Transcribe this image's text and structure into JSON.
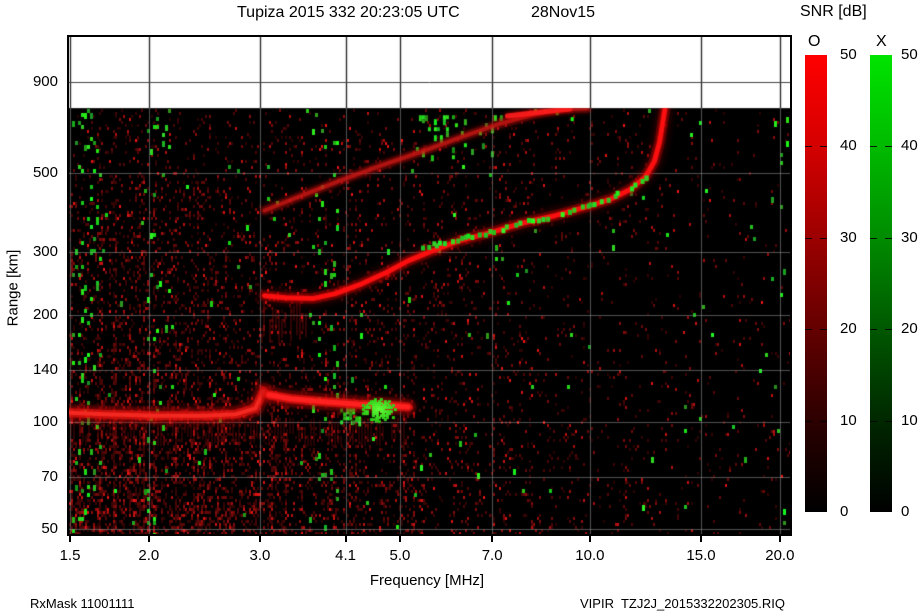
{
  "header": {
    "title": "Tupiza 2015 332 20:23:05 UTC",
    "date": "28Nov15"
  },
  "legend": {
    "title": "SNR [dB]",
    "o_label": "O",
    "x_label": "X",
    "tick_labels": [
      "50",
      "40",
      "30",
      "20",
      "10",
      "0"
    ],
    "o_gradient": [
      "#ff0000",
      "#d40000",
      "#9c0000",
      "#5e0000",
      "#270000",
      "#000000"
    ],
    "x_gradient": [
      "#00e400",
      "#00ba00",
      "#008c00",
      "#005300",
      "#002300",
      "#000000"
    ]
  },
  "footer": {
    "left": "RxMask 11001111",
    "right": "VIPIR  TZJ2J_2015332202305.RIQ"
  },
  "chart_data": {
    "type": "heatmap",
    "title": "Tupiza 2015 332 20:23:05 UTC",
    "date_label": "28Nov15",
    "xlabel": "Frequency [MHz]",
    "ylabel": "Range [km]",
    "x_scale": "log",
    "y_scale": "log",
    "x_ticks": [
      {
        "v": 1.5,
        "label": "1.5"
      },
      {
        "v": 2.0,
        "label": "2.0"
      },
      {
        "v": 3.0,
        "label": "3.0"
      },
      {
        "v": 4.1,
        "label": "4.1"
      },
      {
        "v": 5.0,
        "label": "5.0"
      },
      {
        "v": 7.0,
        "label": "7.0"
      },
      {
        "v": 10.0,
        "label": "10.0"
      },
      {
        "v": 15.0,
        "label": "15.0"
      },
      {
        "v": 20.0,
        "label": "20.0"
      }
    ],
    "y_ticks": [
      {
        "v": 900,
        "label": "900"
      },
      {
        "v": 500,
        "label": "500"
      },
      {
        "v": 300,
        "label": "300"
      },
      {
        "v": 200,
        "label": "200"
      },
      {
        "v": 140,
        "label": "140"
      },
      {
        "v": 100,
        "label": "100"
      },
      {
        "v": 70,
        "label": "70"
      },
      {
        "v": 50,
        "label": "50"
      }
    ],
    "freq_range_mhz": [
      1.5,
      20.9
    ],
    "range_axis_km": [
      48,
      1190
    ],
    "echo_ceiling_km": 760,
    "snr_scale_db": [
      0,
      50
    ],
    "o_mode_color": "#ff0000",
    "x_mode_color": "#00dd00",
    "traces": [
      {
        "name": "E-layer-O",
        "mode": "O",
        "style": "fuzzy",
        "points": [
          [
            1.5,
            106
          ],
          [
            1.7,
            105
          ],
          [
            2.05,
            104
          ],
          [
            2.45,
            104
          ],
          [
            2.75,
            105
          ],
          [
            2.95,
            109
          ],
          [
            3.04,
            122
          ]
        ]
      },
      {
        "name": "F1-low-O",
        "mode": "O",
        "style": "fuzzy-bright",
        "points": [
          [
            3.1,
            119
          ],
          [
            3.35,
            116
          ],
          [
            3.75,
            114
          ],
          [
            4.3,
            112
          ],
          [
            4.8,
            111
          ],
          [
            5.15,
            110
          ]
        ]
      },
      {
        "name": "F2-O",
        "mode": "O",
        "style": "bright",
        "points": [
          [
            3.05,
            226
          ],
          [
            3.3,
            223
          ],
          [
            3.65,
            222
          ],
          [
            3.95,
            229
          ],
          [
            4.35,
            244
          ],
          [
            4.75,
            262
          ],
          [
            5.15,
            283
          ],
          [
            5.6,
            301
          ],
          [
            6.2,
            322
          ],
          [
            7.0,
            341
          ],
          [
            7.8,
            361
          ],
          [
            8.8,
            379
          ],
          [
            9.85,
            401
          ],
          [
            10.8,
            422
          ],
          [
            11.6,
            450
          ],
          [
            12.25,
            488
          ],
          [
            12.65,
            538
          ],
          [
            12.9,
            612
          ],
          [
            13.05,
            695
          ],
          [
            13.15,
            757
          ]
        ]
      },
      {
        "name": "F2-X",
        "mode": "X",
        "style": "patchy",
        "points": [
          [
            5.35,
            312
          ],
          [
            6.1,
            328
          ],
          [
            6.9,
            346
          ],
          [
            7.7,
            364
          ],
          [
            8.5,
            381
          ],
          [
            9.4,
            399
          ],
          [
            10.25,
            417
          ],
          [
            11.05,
            440
          ],
          [
            11.75,
            466
          ],
          [
            12.3,
            497
          ],
          [
            12.55,
            520
          ]
        ]
      },
      {
        "name": "F2-second-hop-O",
        "mode": "O",
        "style": "faint",
        "points": [
          [
            3.05,
            392
          ],
          [
            3.5,
            432
          ],
          [
            4.0,
            474
          ],
          [
            4.65,
            523
          ],
          [
            5.45,
            576
          ],
          [
            6.25,
            630
          ],
          [
            7.15,
            684
          ],
          [
            8.15,
            730
          ],
          [
            9.05,
            754
          ],
          [
            9.9,
            758
          ]
        ]
      },
      {
        "name": "second-hop-top-edge-O",
        "mode": "O",
        "style": "bright-edge",
        "points": [
          [
            7.4,
            722
          ],
          [
            8.3,
            740
          ],
          [
            9.3,
            756
          ]
        ]
      },
      {
        "name": "Es-green-blob",
        "mode": "X",
        "style": "blob",
        "f": [
          4.32,
          4.94
        ],
        "r": [
          101,
          118
        ]
      }
    ],
    "red_noise": {
      "base": 0.3,
      "zones": [
        {
          "f": [
            1.5,
            3.3
          ],
          "r": [
            48,
            118
          ],
          "mult": 1.8
        },
        {
          "f": [
            1.5,
            3.05
          ],
          "r": [
            118,
            500
          ],
          "mult": 1.3
        },
        {
          "f": [
            3.3,
            5.3
          ],
          "r": [
            48,
            100
          ],
          "mult": 1.25
        },
        {
          "f": [
            13.3,
            21.0
          ],
          "r": [
            48,
            760
          ],
          "mult": 0.42
        },
        {
          "f": [
            5.5,
            13.2
          ],
          "r": [
            48,
            165
          ],
          "mult": 0.62
        },
        {
          "f": [
            6.5,
            13.2
          ],
          "r": [
            165,
            330
          ],
          "mult": 0.55
        }
      ]
    },
    "green_noise": {
      "base": 0.005,
      "bands": [
        {
          "f": [
            1.5,
            1.67
          ],
          "d": 0.085
        },
        {
          "f": [
            1.95,
            2.18
          ],
          "d": 0.04
        },
        {
          "f": [
            3.55,
            4.0
          ],
          "d": 0.04
        }
      ],
      "clusters": [
        {
          "f": [
            5.3,
            7.3
          ],
          "r": [
            560,
            745
          ],
          "d": 0.1
        },
        {
          "f": [
            11.2,
            12.5
          ],
          "r": [
            420,
            530
          ],
          "d": 0.05
        },
        {
          "f": [
            4.02,
            4.3
          ],
          "r": [
            99,
            109
          ],
          "d": 0.45
        },
        {
          "f": [
            8.0,
            9.6
          ],
          "r": [
            700,
            755
          ],
          "d": 0.06
        }
      ]
    },
    "streak_zones": [
      {
        "f": [
          3.0,
          3.6
        ],
        "r": [
          165,
          220
        ],
        "c": "rgba(170,18,18,0.30)"
      },
      {
        "f": [
          1.5,
          5.1
        ],
        "r": [
          85,
          103
        ],
        "c": "rgba(140,12,12,0.28)"
      }
    ]
  }
}
